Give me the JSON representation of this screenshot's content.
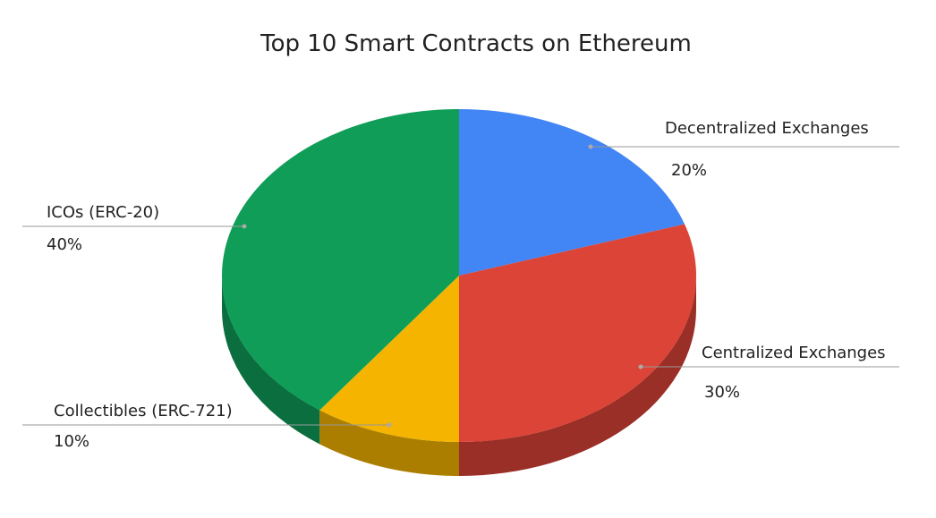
{
  "chart_data": {
    "type": "pie",
    "style": "3d",
    "title": "Top 10 Smart Contracts on Ethereum",
    "slices": [
      {
        "label": "Decentralized Exchanges",
        "value": 20,
        "pct_label": "20%",
        "color": "#4285f4",
        "side": "#2f5fae"
      },
      {
        "label": "Centralized Exchanges",
        "value": 30,
        "pct_label": "30%",
        "color": "#db4437",
        "side": "#9a2f27"
      },
      {
        "label": "Collectibles (ERC-721)",
        "value": 10,
        "pct_label": "10%",
        "color": "#f4b400",
        "side": "#ab7e00"
      },
      {
        "label": "ICOs (ERC-20)",
        "value": 40,
        "pct_label": "40%",
        "color": "#0f9d58",
        "side": "#0b6e3e"
      }
    ],
    "start_angle": "top",
    "direction": "clockwise"
  }
}
